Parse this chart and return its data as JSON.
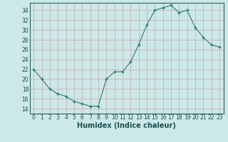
{
  "x": [
    0,
    1,
    2,
    3,
    4,
    5,
    6,
    7,
    8,
    9,
    10,
    11,
    12,
    13,
    14,
    15,
    16,
    17,
    18,
    19,
    20,
    21,
    22,
    23
  ],
  "y": [
    22,
    20,
    18,
    17,
    16.5,
    15.5,
    15,
    14.5,
    14.5,
    20,
    21.5,
    21.5,
    23.5,
    27,
    31,
    34,
    34.5,
    35,
    33.5,
    34,
    30.5,
    28.5,
    27,
    26.5
  ],
  "line_color": "#2d7b6e",
  "marker_color": "#2d7b6e",
  "bg_color": "#cce8e8",
  "grid_major_color": "#b8d4d4",
  "grid_minor_color": "#c8e0e0",
  "xlabel": "Humidex (Indice chaleur)",
  "ylim": [
    13,
    35.5
  ],
  "xlim": [
    -0.5,
    23.5
  ],
  "yticks": [
    14,
    16,
    18,
    20,
    22,
    24,
    26,
    28,
    30,
    32,
    34
  ],
  "xticks": [
    0,
    1,
    2,
    3,
    4,
    5,
    6,
    7,
    8,
    9,
    10,
    11,
    12,
    13,
    14,
    15,
    16,
    17,
    18,
    19,
    20,
    21,
    22,
    23
  ],
  "xlabel_fontsize": 7,
  "tick_fontsize": 5.5
}
